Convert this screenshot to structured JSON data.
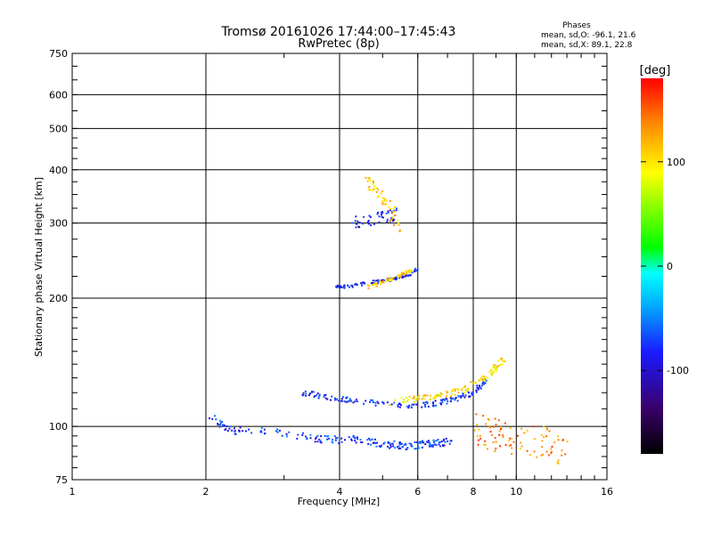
{
  "chart_data": {
    "type": "scatter",
    "title": "Tromsø 20161026 17:44:00–17:45:43",
    "subtitle": "RwPretec (8p)",
    "xlabel": "Frequency [MHz]",
    "ylabel": "Stationary phase Virtual Height [km]",
    "x_scale": "log2",
    "y_scale": "log",
    "xlim": [
      1,
      16
    ],
    "ylim": [
      75,
      750
    ],
    "x_ticks": [
      1,
      2,
      4,
      6,
      8,
      10,
      16
    ],
    "y_ticks": [
      75,
      100,
      200,
      300,
      400,
      500,
      600,
      750
    ],
    "grid": true,
    "stats": {
      "heading": "Phases",
      "o_line": "mean, sd,O: -96.1, 21.6",
      "x_line": "mean, sd,X:  89.1, 22.8"
    },
    "colorbar": {
      "label": "[deg]",
      "range": [
        -180,
        180
      ],
      "ticks": [
        -100,
        0,
        100
      ],
      "colors": [
        "#000000",
        "#3a006a",
        "#1a1aff",
        "#00b0ff",
        "#00ffff",
        "#00ff00",
        "#ffff00",
        "#ff8800",
        "#ff0000"
      ]
    },
    "traces": [
      {
        "segments": [
          [
            2.05,
            105
          ],
          [
            2.3,
            98
          ],
          [
            2.8,
            97
          ],
          [
            3.3,
            95
          ],
          [
            3.8,
            93
          ],
          [
            4.3,
            93
          ],
          [
            5.0,
            91
          ],
          [
            5.8,
            90
          ],
          [
            6.5,
            91
          ],
          [
            7.2,
            92
          ]
        ],
        "phase": -100,
        "spread": 0.018,
        "n": 200
      },
      {
        "segments": [
          [
            3.3,
            120
          ],
          [
            3.8,
            117
          ],
          [
            4.3,
            115
          ],
          [
            5.0,
            113
          ],
          [
            5.8,
            112
          ],
          [
            6.5,
            113
          ],
          [
            7.3,
            116
          ],
          [
            8.0,
            120
          ],
          [
            8.6,
            128
          ]
        ],
        "phase": -105,
        "spread": 0.012,
        "n": 160
      },
      {
        "segments": [
          [
            5.2,
            114
          ],
          [
            6.0,
            116
          ],
          [
            6.8,
            118
          ],
          [
            7.6,
            122
          ],
          [
            8.3,
            128
          ],
          [
            8.9,
            136
          ],
          [
            9.4,
            145
          ]
        ],
        "phase": 100,
        "spread": 0.015,
        "n": 120
      },
      {
        "segments": [
          [
            3.9,
            212
          ],
          [
            4.3,
            214
          ],
          [
            4.8,
            218
          ],
          [
            5.3,
            222
          ],
          [
            5.7,
            227
          ],
          [
            6.0,
            234
          ]
        ],
        "phase": -110,
        "spread": 0.008,
        "n": 90
      },
      {
        "segments": [
          [
            4.6,
            212
          ],
          [
            5.0,
            218
          ],
          [
            5.4,
            225
          ],
          [
            5.8,
            232
          ]
        ],
        "phase": 110,
        "spread": 0.009,
        "n": 60
      },
      {
        "segments": [
          [
            4.3,
            300
          ],
          [
            4.6,
            305
          ],
          [
            5.0,
            310
          ],
          [
            5.4,
            315
          ]
        ],
        "phase": -105,
        "spread": 0.03,
        "n": 45
      },
      {
        "segments": [
          [
            4.6,
            380
          ],
          [
            4.9,
            350
          ],
          [
            5.2,
            320
          ],
          [
            5.5,
            295
          ]
        ],
        "phase": 115,
        "spread": 0.04,
        "n": 50
      },
      {
        "segments": [
          [
            8.0,
            100
          ],
          [
            8.8,
            96
          ],
          [
            9.8,
            94
          ],
          [
            11.5,
            92
          ],
          [
            13.0,
            88
          ]
        ],
        "phase": 140,
        "spread": 0.08,
        "n": 90
      }
    ]
  }
}
